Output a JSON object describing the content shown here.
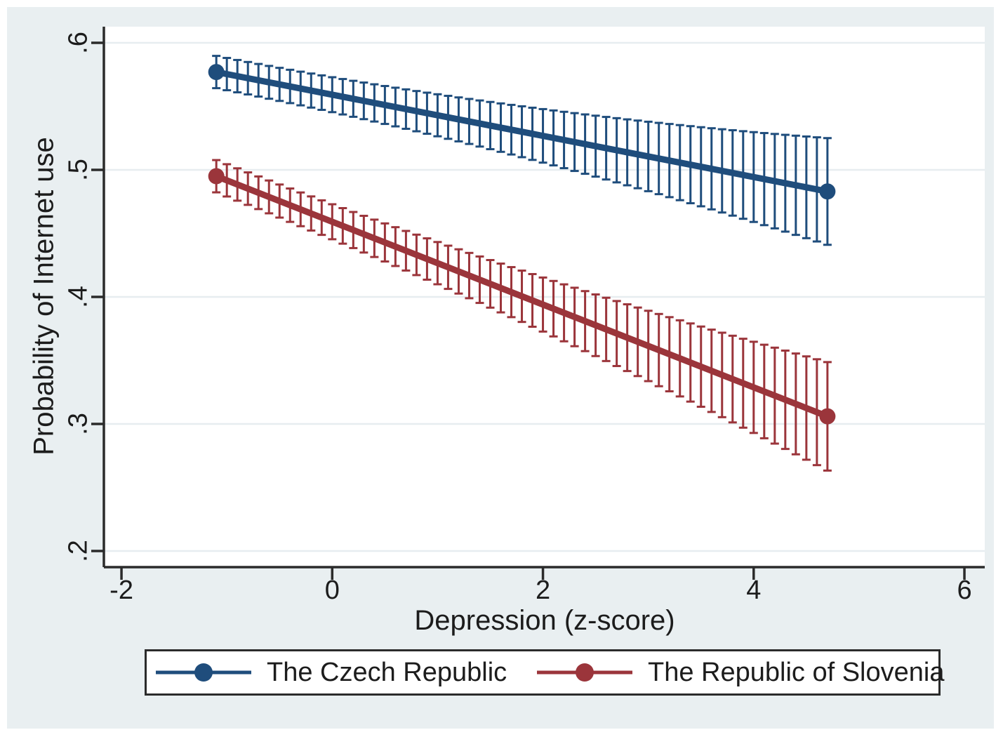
{
  "figure": {
    "page_background": "#ffffff",
    "figure_background": "#e9eff1",
    "plot_background": "#ffffff"
  },
  "chart_data": {
    "type": "line",
    "subtype": "predicted-probabilities-with-capped-confidence-interval-bars",
    "title": "",
    "xlabel": "Depression (z-score)",
    "ylabel": "Probability of Internet use",
    "xlim": [
      -2.167,
      6.193
    ],
    "ylim": [
      0.1873,
      0.6127
    ],
    "xticks": [
      -2,
      0,
      2,
      4,
      6
    ],
    "xtick_labels": [
      "-2",
      "0",
      "2",
      "4",
      "6"
    ],
    "yticks": [
      0.2,
      0.3,
      0.4,
      0.5,
      0.6
    ],
    "ytick_labels": [
      ".2",
      ".3",
      ".4",
      ".5",
      ".6"
    ],
    "grid": "horizontal-gridlines-on",
    "gridline_color": "#e7edf0",
    "axis_color": "#2b2b2b",
    "legend_position": "bottom",
    "series": [
      {
        "name": "The Czech Republic",
        "color": "#1f4d7c",
        "marker": "circle-at-endpoints",
        "x_start": -1.1,
        "x_end": 4.7,
        "x_step": 0.1,
        "y_start": 0.577,
        "y_end": 0.483,
        "ci_half_width_start": 0.0127,
        "ci_half_width_end": 0.042
      },
      {
        "name": "The Republic of Slovenia",
        "color": "#9b353b",
        "marker": "circle-at-endpoints",
        "x_start": -1.1,
        "x_end": 4.7,
        "x_step": 0.1,
        "y_start": 0.495,
        "y_end": 0.306,
        "ci_half_width_start": 0.0127,
        "ci_half_width_end": 0.0427
      }
    ]
  },
  "legend": {
    "entries": [
      "The Czech Republic",
      "The Republic of Slovenia"
    ]
  }
}
